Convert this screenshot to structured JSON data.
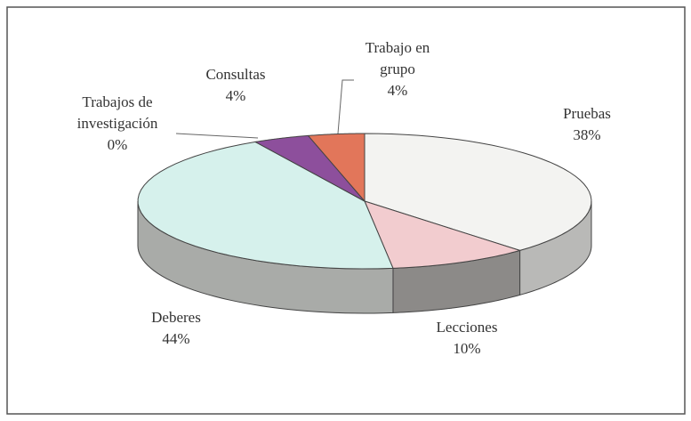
{
  "chart_data": {
    "type": "pie3d",
    "categories": [
      "Pruebas",
      "Lecciones",
      "Deberes",
      "Trabajos de investigación",
      "Consultas",
      "Trabajo en grupo"
    ],
    "values": [
      38,
      10,
      44,
      0,
      4,
      4
    ],
    "value_labels": [
      "38%",
      "10%",
      "44%",
      "0%",
      "4%",
      "4%"
    ],
    "colors": [
      "#f3f3f1",
      "#f2cccf",
      "#d6f1ec",
      "#c9c9c9",
      "#8d4f9c",
      "#e2765a"
    ],
    "side_colors": [
      "#b9b9b7",
      "#8c8a88",
      "#a9aba8",
      "#999999",
      "#5e3068",
      "#a44a34"
    ]
  }
}
